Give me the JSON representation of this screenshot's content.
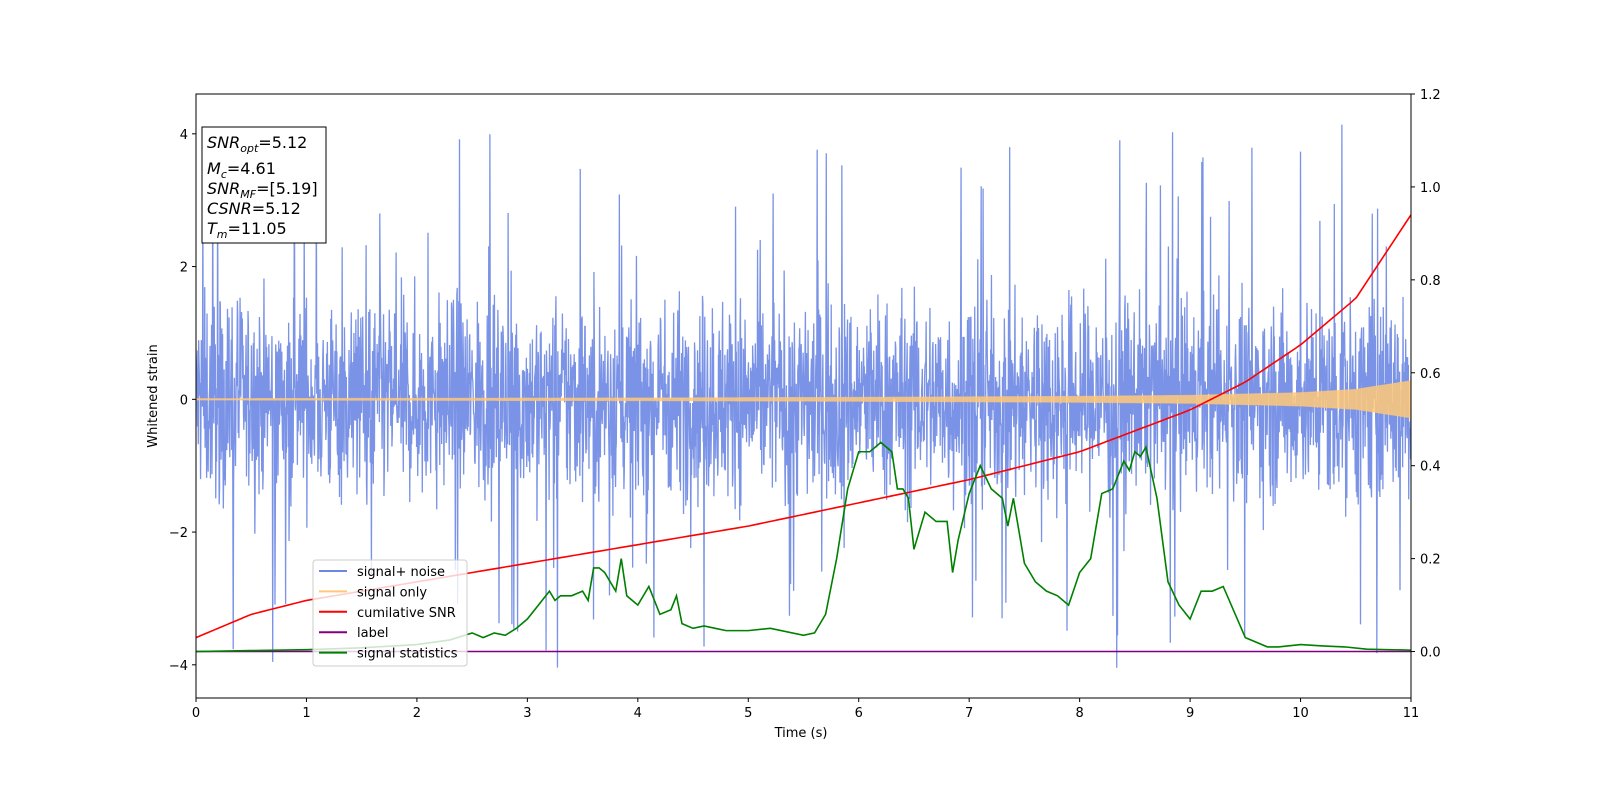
{
  "chart_data": {
    "type": "line",
    "xlabel": "Time (s)",
    "ylabel": "Whitened strain",
    "xlim": [
      0,
      11
    ],
    "ylim_left": [
      -4.5,
      4.6
    ],
    "ylim_right": [
      -0.1,
      1.2
    ],
    "x_ticks": [
      "0",
      "1",
      "2",
      "3",
      "4",
      "5",
      "6",
      "7",
      "8",
      "9",
      "10",
      "11"
    ],
    "y_ticks_left": [
      "−4",
      "−2",
      "0",
      "2",
      "4"
    ],
    "y_ticks_right": [
      "0.0",
      "0.2",
      "0.4",
      "0.6",
      "0.8",
      "1.0",
      "1.2"
    ],
    "info_box": {
      "snr_opt": {
        "main": "SNR",
        "sub": "opt",
        "value": "=5.12"
      },
      "mc": {
        "main": "M",
        "sub": "c",
        "value": "=4.61"
      },
      "snr_mf": {
        "main": "SNR",
        "sub": "MF",
        "value": "=[5.19]"
      },
      "csnr": {
        "main": "CSNR",
        "value": "=5.12"
      },
      "tm": {
        "main": "T",
        "sub": "m",
        "value": "=11.05"
      }
    },
    "legend": {
      "placement": "lower-left",
      "entries": [
        {
          "label": "signal+ noise",
          "color": "#6b87e3"
        },
        {
          "label": "signal only",
          "color": "#ffc878"
        },
        {
          "label": "cumilative SNR",
          "color": "#ff0000"
        },
        {
          "label": "label",
          "color": "#800080"
        },
        {
          "label": "signal statistics",
          "color": "#008000"
        }
      ]
    },
    "series": [
      {
        "name": "signal+ noise",
        "axis": "left",
        "color": "#6b87e3",
        "noise_band": {
          "lower": -2.0,
          "upper": 2.1,
          "peak_max": 4.15,
          "trough_min": -4.1
        }
      },
      {
        "name": "signal only",
        "axis": "left",
        "color": "#ffc878",
        "envelope": {
          "x": [
            0,
            2,
            4,
            6,
            8,
            9,
            10,
            10.5,
            11
          ],
          "amplitude": [
            0.01,
            0.015,
            0.02,
            0.03,
            0.045,
            0.06,
            0.1,
            0.15,
            0.28
          ]
        }
      },
      {
        "name": "cumilative SNR",
        "axis": "right",
        "color": "#ff0000",
        "x": [
          0,
          0.5,
          1,
          2,
          3,
          4,
          5,
          6,
          7,
          8,
          9,
          9.5,
          10,
          10.5,
          11
        ],
        "y": [
          0.03,
          0.08,
          0.11,
          0.15,
          0.19,
          0.23,
          0.27,
          0.32,
          0.37,
          0.43,
          0.52,
          0.58,
          0.66,
          0.76,
          0.94
        ]
      },
      {
        "name": "label",
        "axis": "right",
        "color": "#800080",
        "x": [
          0,
          11
        ],
        "y": [
          0.0,
          0.0
        ]
      },
      {
        "name": "signal statistics",
        "axis": "right",
        "color": "#008000",
        "x": [
          0,
          0.5,
          1,
          1.5,
          2,
          2.3,
          2.5,
          2.55,
          2.6,
          2.7,
          2.8,
          2.9,
          3.0,
          3.1,
          3.2,
          3.25,
          3.3,
          3.4,
          3.5,
          3.55,
          3.6,
          3.65,
          3.7,
          3.8,
          3.85,
          3.9,
          4.0,
          4.1,
          4.2,
          4.3,
          4.35,
          4.4,
          4.5,
          4.6,
          4.7,
          4.8,
          5.0,
          5.2,
          5.5,
          5.6,
          5.7,
          5.8,
          5.9,
          6.0,
          6.1,
          6.2,
          6.3,
          6.35,
          6.4,
          6.45,
          6.5,
          6.6,
          6.7,
          6.8,
          6.85,
          6.9,
          7.0,
          7.1,
          7.2,
          7.3,
          7.35,
          7.4,
          7.5,
          7.6,
          7.7,
          7.8,
          7.9,
          8.0,
          8.1,
          8.2,
          8.3,
          8.4,
          8.45,
          8.5,
          8.55,
          8.6,
          8.7,
          8.8,
          8.9,
          9.0,
          9.1,
          9.2,
          9.3,
          9.5,
          9.7,
          9.8,
          10.0,
          10.2,
          10.4,
          10.6,
          11.0
        ],
        "y": [
          0.0,
          0.002,
          0.004,
          0.008,
          0.015,
          0.025,
          0.04,
          0.035,
          0.03,
          0.04,
          0.035,
          0.05,
          0.07,
          0.1,
          0.13,
          0.11,
          0.12,
          0.12,
          0.13,
          0.11,
          0.18,
          0.18,
          0.17,
          0.13,
          0.2,
          0.12,
          0.1,
          0.14,
          0.08,
          0.09,
          0.12,
          0.06,
          0.05,
          0.055,
          0.05,
          0.045,
          0.045,
          0.05,
          0.035,
          0.04,
          0.08,
          0.2,
          0.35,
          0.43,
          0.43,
          0.45,
          0.43,
          0.35,
          0.35,
          0.33,
          0.22,
          0.3,
          0.28,
          0.28,
          0.17,
          0.24,
          0.34,
          0.4,
          0.35,
          0.33,
          0.27,
          0.33,
          0.19,
          0.15,
          0.13,
          0.12,
          0.1,
          0.17,
          0.2,
          0.34,
          0.35,
          0.41,
          0.39,
          0.43,
          0.42,
          0.44,
          0.33,
          0.15,
          0.1,
          0.07,
          0.13,
          0.13,
          0.14,
          0.03,
          0.01,
          0.01,
          0.015,
          0.012,
          0.01,
          0.005,
          0.003
        ]
      }
    ]
  }
}
